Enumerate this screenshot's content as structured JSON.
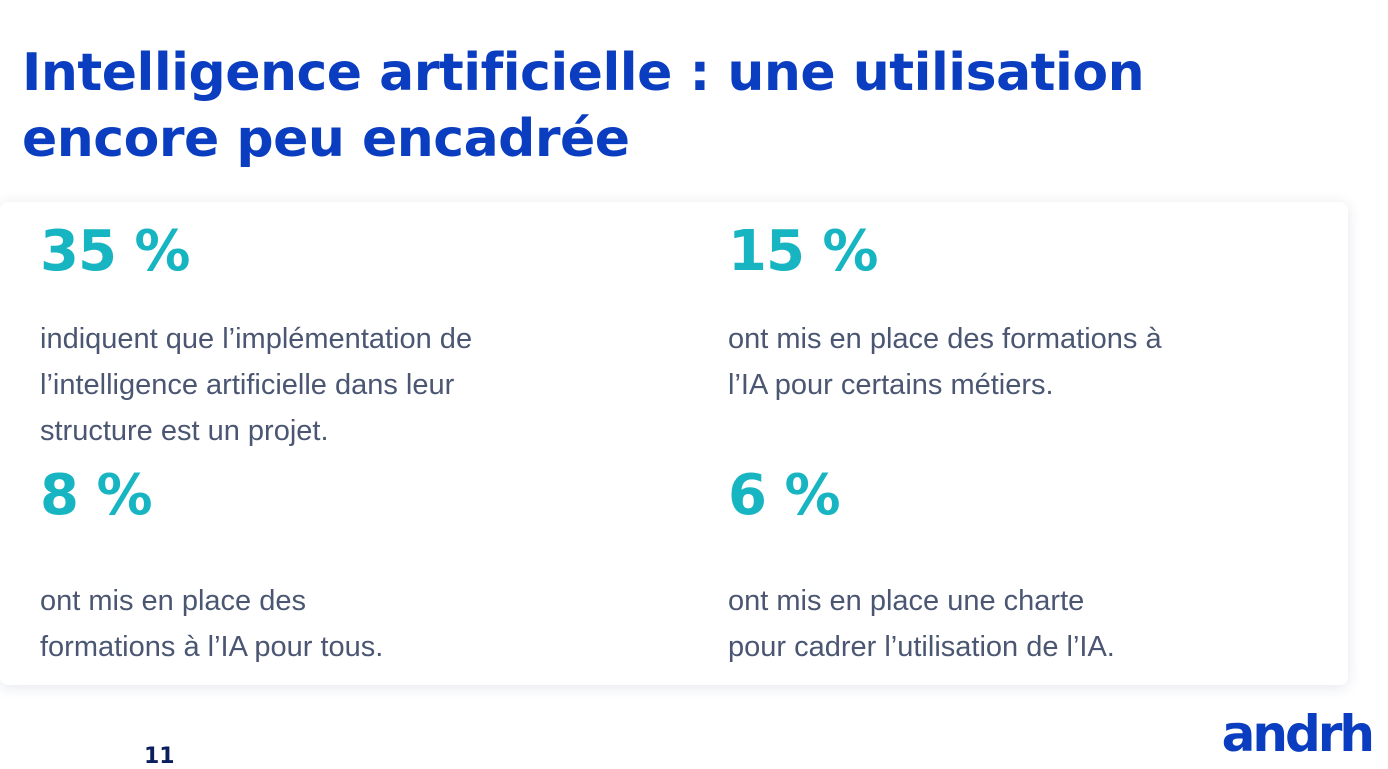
{
  "header": {
    "title_lines": [
      "Intelligence artificielle : une utilisation",
      "encore peu encadrée"
    ]
  },
  "stats": [
    {
      "value": "35 %",
      "lines": [
        "indiquent que l’implémentation de",
        "l’intelligence artificielle dans leur",
        "structure est un projet."
      ]
    },
    {
      "value": "15 %",
      "lines": [
        "ont mis en place des formations à",
        "l’IA pour certains métiers."
      ]
    },
    {
      "value": "8 %",
      "lines": [
        "ont mis en place des",
        "formations à l’IA pour tous."
      ]
    },
    {
      "value": "6 %",
      "lines": [
        "ont mis en place une charte",
        "pour cadrer l’utilisation de l’IA."
      ]
    }
  ],
  "footer": {
    "page_number": "11",
    "logo": "andrh"
  }
}
